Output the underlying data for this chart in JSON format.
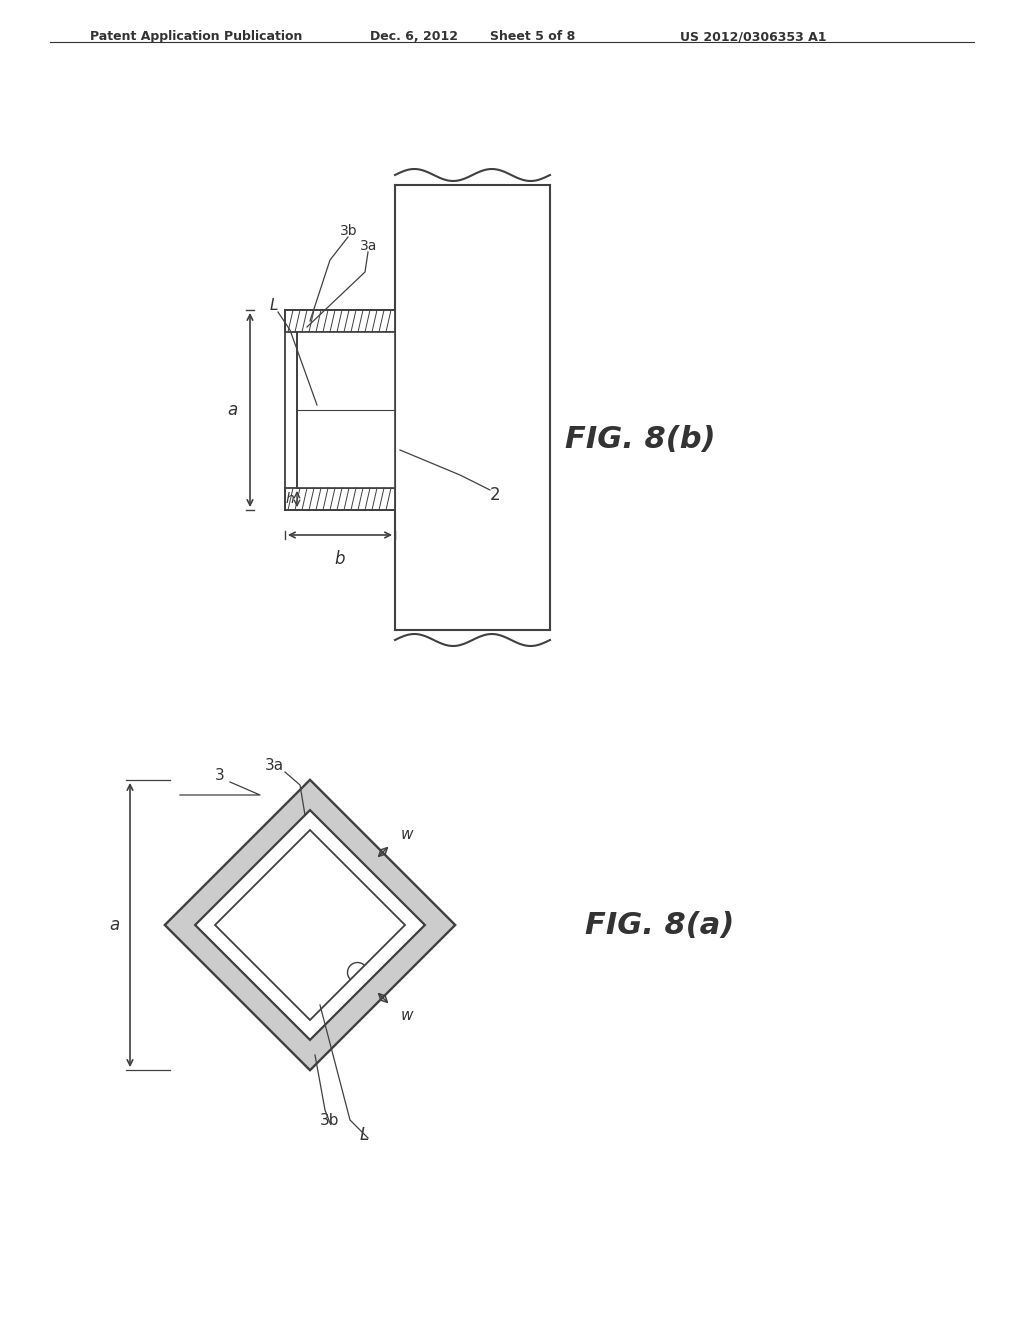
{
  "background_color": "#ffffff",
  "header_text": "Patent Application Publication",
  "header_date": "Dec. 6, 2012",
  "header_sheet": "Sheet 5 of 8",
  "header_patent": "US 2012/0306353 A1",
  "fig_b_label": "FIG. 8(b)",
  "fig_a_label": "FIG. 8(a)",
  "line_color": "#404040",
  "text_color": "#333333"
}
